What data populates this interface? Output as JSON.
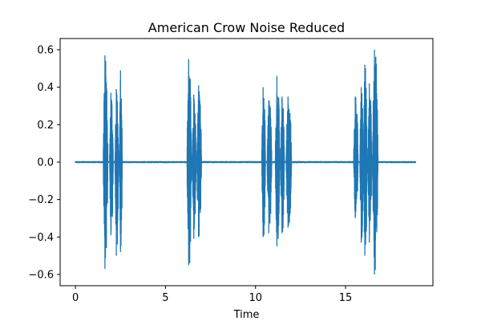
{
  "chart_data": {
    "type": "line",
    "title": "American Crow Noise Reduced",
    "xlabel": "Time",
    "ylabel": "",
    "xlim": [
      -0.85,
      19.85
    ],
    "ylim": [
      -0.66,
      0.66
    ],
    "xticks": [
      0,
      5,
      10,
      15
    ],
    "yticks": [
      -0.6,
      -0.4,
      -0.2,
      0.0,
      0.2,
      0.4,
      0.6
    ],
    "xtick_labels": [
      "0",
      "5",
      "10",
      "15"
    ],
    "ytick_labels": [
      "−0.6",
      "−0.4",
      "−0.2",
      "0.0",
      "0.2",
      "0.4",
      "0.6"
    ],
    "grid": false,
    "series_color": "#1f77b4",
    "duration": 18.9,
    "series": [
      {
        "bursts": [
          {
            "start": 1.55,
            "end": 1.8,
            "peak_pos": 0.57,
            "peak_neg": -0.57
          },
          {
            "start": 1.9,
            "end": 2.1,
            "peak_pos": 0.37,
            "peak_neg": -0.39
          },
          {
            "start": 2.2,
            "end": 2.4,
            "peak_pos": 0.39,
            "peak_neg": -0.5
          },
          {
            "start": 2.45,
            "end": 2.6,
            "peak_pos": 0.49,
            "peak_neg": -0.48
          },
          {
            "start": 6.2,
            "end": 6.45,
            "peak_pos": 0.55,
            "peak_neg": -0.55
          },
          {
            "start": 6.5,
            "end": 6.7,
            "peak_pos": 0.36,
            "peak_neg": -0.41
          },
          {
            "start": 6.75,
            "end": 7.0,
            "peak_pos": 0.41,
            "peak_neg": -0.4
          },
          {
            "start": 10.35,
            "end": 10.55,
            "peak_pos": 0.4,
            "peak_neg": -0.4
          },
          {
            "start": 10.65,
            "end": 10.9,
            "peak_pos": 0.33,
            "peak_neg": -0.38
          },
          {
            "start": 11.1,
            "end": 11.35,
            "peak_pos": 0.46,
            "peak_neg": -0.45
          },
          {
            "start": 11.4,
            "end": 11.6,
            "peak_pos": 0.35,
            "peak_neg": -0.38
          },
          {
            "start": 11.7,
            "end": 12.0,
            "peak_pos": 0.35,
            "peak_neg": -0.35
          },
          {
            "start": 15.45,
            "end": 15.7,
            "peak_pos": 0.35,
            "peak_neg": -0.3
          },
          {
            "start": 15.8,
            "end": 16.0,
            "peak_pos": 0.4,
            "peak_neg": -0.43
          },
          {
            "start": 16.0,
            "end": 16.2,
            "peak_pos": 0.52,
            "peak_neg": -0.5
          },
          {
            "start": 16.25,
            "end": 16.45,
            "peak_pos": 0.42,
            "peak_neg": -0.43
          },
          {
            "start": 16.5,
            "end": 16.8,
            "peak_pos": 0.6,
            "peak_neg": -0.6
          }
        ]
      }
    ]
  }
}
